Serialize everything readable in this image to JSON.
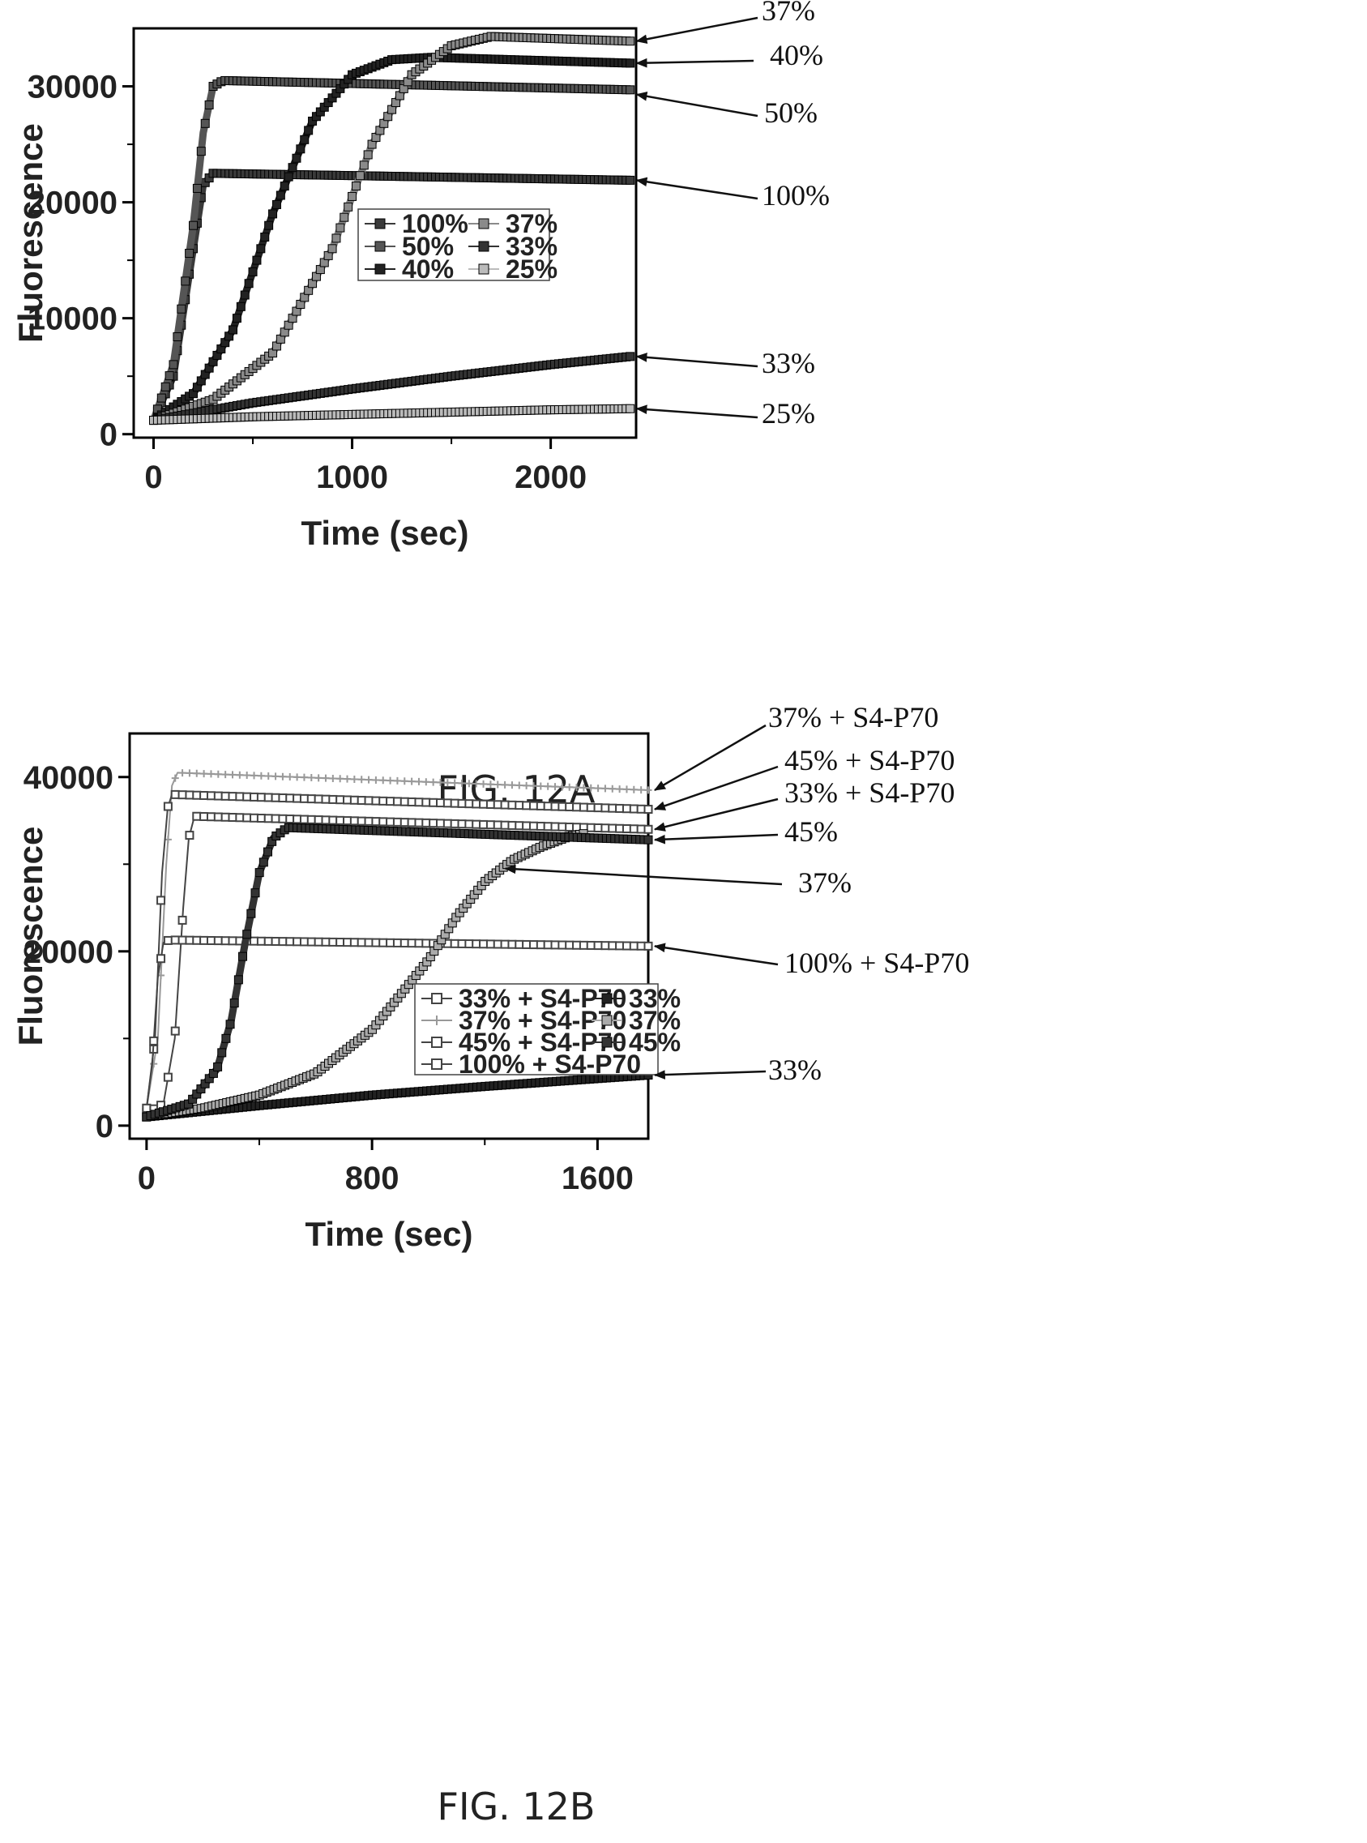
{
  "charts": [
    {
      "caption": "FIG. 12A",
      "chart_data": {
        "type": "line",
        "xlabel": "Time (sec)",
        "ylabel": "Fluorescence",
        "xlim": [
          -100,
          2430
        ],
        "ylim": [
          -300,
          35000
        ],
        "xticks": [
          "0",
          "1000",
          "2000"
        ],
        "yticks": [
          "0",
          "10000",
          "20000",
          "30000"
        ],
        "legend_position": "center-right",
        "series": [
          {
            "name": "100%",
            "color": "#3a3a3a",
            "x": [
              0,
              100,
              200,
              250,
              300,
              2400
            ],
            "y": [
              1200,
              5000,
              16000,
              21500,
              22500,
              21900
            ]
          },
          {
            "name": "50%",
            "color": "#555555",
            "x": [
              0,
              100,
              200,
              250,
              300,
              350,
              2400
            ],
            "y": [
              1200,
              6000,
              18000,
              26000,
              30000,
              30500,
              29700
            ]
          },
          {
            "name": "40%",
            "color": "#222222",
            "x": [
              0,
              200,
              400,
              600,
              800,
              1000,
              1200,
              1400,
              2400
            ],
            "y": [
              1200,
              3500,
              9000,
              19000,
              27000,
              31000,
              32300,
              32500,
              32000
            ]
          },
          {
            "name": "37%",
            "color": "#8a8a8a",
            "x": [
              0,
              300,
              600,
              900,
              1100,
              1300,
              1500,
              1700,
              2400
            ],
            "y": [
              1200,
              3000,
              7000,
              16000,
              25000,
              31000,
              33500,
              34300,
              33900
            ]
          },
          {
            "name": "33%",
            "color": "#333333",
            "x": [
              0,
              500,
              1000,
              1500,
              2000,
              2400
            ],
            "y": [
              1200,
              2700,
              3900,
              5000,
              6000,
              6700
            ]
          },
          {
            "name": "25%",
            "color": "#bbbbbb",
            "x": [
              0,
              500,
              1000,
              1500,
              2000,
              2400
            ],
            "y": [
              1200,
              1500,
              1700,
              1900,
              2100,
              2200
            ]
          }
        ]
      },
      "callouts": [
        {
          "label": "37%",
          "series": "37%",
          "x": 2400,
          "y": 33900
        },
        {
          "label": "40%",
          "series": "40%",
          "x": 2400,
          "y": 32000
        },
        {
          "label": "50%",
          "series": "50%",
          "x": 2400,
          "y": 29300
        },
        {
          "label": "100%",
          "series": "100%",
          "x": 2400,
          "y": 21900
        },
        {
          "label": "33%",
          "series": "33%",
          "x": 2400,
          "y": 6700
        },
        {
          "label": "25%",
          "series": "25%",
          "x": 2400,
          "y": 2200
        }
      ]
    },
    {
      "caption": "FIG. 12B",
      "chart_data": {
        "type": "line",
        "xlabel": "Time (sec)",
        "ylabel": "Fluorescence",
        "xlim": [
          -60,
          1780
        ],
        "ylim": [
          -1500,
          45000
        ],
        "xticks": [
          "0",
          "800",
          "1600"
        ],
        "yticks": [
          "0",
          "20000",
          "40000"
        ],
        "legend_position": "lower-right",
        "series": [
          {
            "name": "33% + S4-P70",
            "color": "#444444",
            "marker": "open-square",
            "x": [
              0,
              60,
              100,
              130,
              150,
              170,
              1780
            ],
            "y": [
              1500,
              2500,
              10000,
              25000,
              33000,
              35500,
              34000
            ]
          },
          {
            "name": "37% +  S4-P70",
            "color": "#999999",
            "marker": "cross",
            "x": [
              0,
              40,
              70,
              90,
              110,
              1780
            ],
            "y": [
              2000,
              10000,
              30000,
              39000,
              40500,
              38500
            ]
          },
          {
            "name": "45% + S4-P70",
            "color": "#444444",
            "marker": "open-square",
            "x": [
              0,
              30,
              55,
              75,
              90,
              1780
            ],
            "y": [
              2000,
              10000,
              29000,
              36500,
              38000,
              36300
            ]
          },
          {
            "name": "100% + S4-P70",
            "color": "#444444",
            "marker": "open-square",
            "x": [
              0,
              20,
              40,
              60,
              80,
              1780
            ],
            "y": [
              2000,
              7000,
              17000,
              21000,
              21300,
              20600
            ]
          },
          {
            "name": "33%",
            "color": "#222222",
            "x": [
              0,
              400,
              800,
              1200,
              1600,
              1780
            ],
            "y": [
              1000,
              2300,
              3500,
              4500,
              5400,
              5800
            ]
          },
          {
            "name": "37%",
            "color": "#aaaaaa",
            "x": [
              0,
              200,
              400,
              600,
              800,
              1000,
              1100,
              1200,
              1300,
              1400,
              1500,
              1550
            ],
            "y": [
              1000,
              2000,
              3500,
              6000,
              11000,
              19000,
              24000,
              28000,
              30500,
              32000,
              33200,
              33500
            ]
          },
          {
            "name": "45%",
            "color": "#333333",
            "x": [
              0,
              150,
              250,
              300,
              350,
              400,
              450,
              500,
              1780
            ],
            "y": [
              1000,
              2500,
              6500,
              12000,
              21000,
              29000,
              33000,
              34200,
              32800
            ]
          }
        ]
      },
      "callouts": [
        {
          "label": "37% + S4-P70",
          "series": "37% +  S4-P70",
          "x": 1780,
          "y": 38500
        },
        {
          "label": "45% + S4-P70",
          "series": "45% + S4-P70",
          "x": 1780,
          "y": 36300
        },
        {
          "label": "33% + S4-P70",
          "series": "33% + S4-P70",
          "x": 1780,
          "y": 34000
        },
        {
          "label": "45%",
          "series": "45%",
          "x": 1780,
          "y": 32800
        },
        {
          "label": "37%",
          "series": "37%",
          "x": 1250,
          "y": 29500
        },
        {
          "label": "100% + S4-P70",
          "series": "100% + S4-P70",
          "x": 1780,
          "y": 20600
        },
        {
          "label": "33%",
          "series": "33%",
          "x": 1780,
          "y": 5800
        }
      ]
    }
  ]
}
